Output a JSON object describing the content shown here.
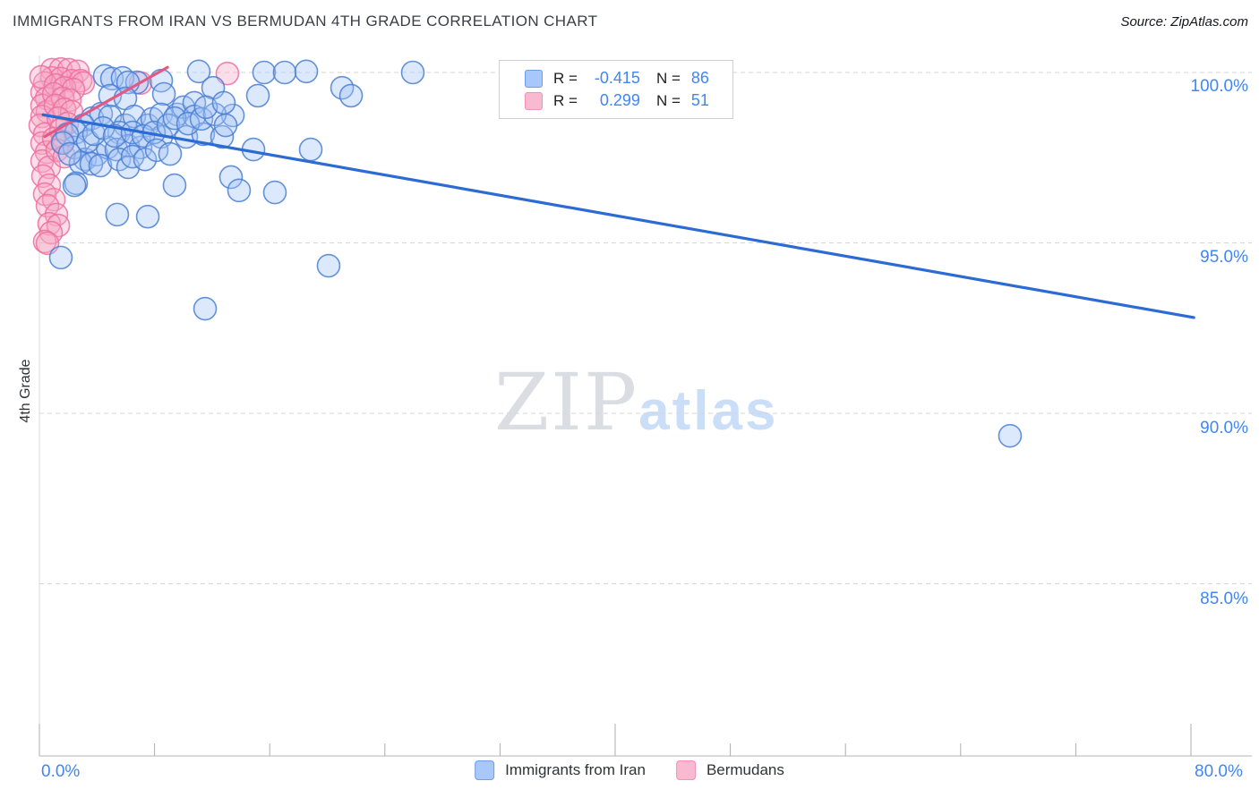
{
  "title": "IMMIGRANTS FROM IRAN VS BERMUDAN 4TH GRADE CORRELATION CHART",
  "source": "Source: ZipAtlas.com",
  "watermark": {
    "zip": "ZIP",
    "atlas": "atlas"
  },
  "y_axis_title": "4th Grade",
  "axes": {
    "x_min_label": "0.0%",
    "x_max_label": "80.0%",
    "y_tick_labels": [
      "100.0%",
      "95.0%",
      "90.0%",
      "85.0%"
    ]
  },
  "legend_box": {
    "rows": [
      {
        "r_label": "R =",
        "r_value": "-0.415",
        "n_label": "N =",
        "n_value": "86"
      },
      {
        "r_label": "R =",
        "r_value": "0.299",
        "n_label": "N =",
        "n_value": "51"
      }
    ]
  },
  "bottom_legend": [
    {
      "label": "Immigrants from Iran"
    },
    {
      "label": "Bermudans"
    }
  ],
  "colors": {
    "blue_fill": "#a4c2f4",
    "blue_stroke": "#4a7fd4",
    "blue_trend": "#2b6bd3",
    "pink_fill": "#f4a7c3",
    "pink_stroke": "#ee6fa0",
    "pink_trend": "#e25984",
    "grid": "#d6d6d6",
    "axis": "#b5b5b5",
    "tick_label": "#4285f4"
  },
  "chart_data": {
    "type": "scatter",
    "xlabel": "Immigrants from Iran (%)",
    "ylabel": "4th Grade",
    "xlim": [
      0,
      84.7
    ],
    "ylim": [
      79.9,
      100.5
    ],
    "y_gridlines": [
      100,
      95,
      90,
      85
    ],
    "x_minor_ticks": [
      8,
      16,
      24,
      32,
      48,
      56,
      64,
      72
    ],
    "x_major_ticks": [
      0,
      40,
      80
    ],
    "legend_position": "top-center",
    "series": [
      {
        "name": "Immigrants from Iran",
        "R": -0.415,
        "N": 86,
        "trend": {
          "x1": 0.25,
          "y1": 98.76,
          "x2": 80.2,
          "y2": 92.81
        },
        "points": [
          [
            4.54,
            99.9
          ],
          [
            5.04,
            99.82
          ],
          [
            5.78,
            99.84
          ],
          [
            6.78,
            99.71
          ],
          [
            6.16,
            99.71
          ],
          [
            8.46,
            99.76
          ],
          [
            4.91,
            99.32
          ],
          [
            5.97,
            99.24
          ],
          [
            8.65,
            99.37
          ],
          [
            11.07,
            100.03
          ],
          [
            15.61,
            100.0
          ],
          [
            17.04,
            100.0
          ],
          [
            18.54,
            100.03
          ],
          [
            25.94,
            100.0
          ],
          [
            12.07,
            99.55
          ],
          [
            15.18,
            99.32
          ],
          [
            21.03,
            99.55
          ],
          [
            21.65,
            99.32
          ],
          [
            13.44,
            98.74
          ],
          [
            3.67,
            98.66
          ],
          [
            4.29,
            98.79
          ],
          [
            4.91,
            98.71
          ],
          [
            3.05,
            98.45
          ],
          [
            5.97,
            98.45
          ],
          [
            6.59,
            98.71
          ],
          [
            7.53,
            98.45
          ],
          [
            7.84,
            98.64
          ],
          [
            8.46,
            98.77
          ],
          [
            2.55,
            98.24
          ],
          [
            5.54,
            98.24
          ],
          [
            2.43,
            97.8
          ],
          [
            3.17,
            97.45
          ],
          [
            3.98,
            97.59
          ],
          [
            4.73,
            97.8
          ],
          [
            5.35,
            97.74
          ],
          [
            6.16,
            97.85
          ],
          [
            7.03,
            97.8
          ],
          [
            2.86,
            97.35
          ],
          [
            3.61,
            97.32
          ],
          [
            4.23,
            97.27
          ],
          [
            5.54,
            97.45
          ],
          [
            6.16,
            97.22
          ],
          [
            2.55,
            96.75
          ],
          [
            2.43,
            96.69
          ],
          [
            8.46,
            98.11
          ],
          [
            9.58,
            98.77
          ],
          [
            10.01,
            98.98
          ],
          [
            10.76,
            99.11
          ],
          [
            10.76,
            98.71
          ],
          [
            10.2,
            98.11
          ],
          [
            11.38,
            98.19
          ],
          [
            12.69,
            98.11
          ],
          [
            14.87,
            97.74
          ],
          [
            18.85,
            97.74
          ],
          [
            9.39,
            96.69
          ],
          [
            13.31,
            96.93
          ],
          [
            13.87,
            96.54
          ],
          [
            16.36,
            96.48
          ],
          [
            7.53,
            95.77
          ],
          [
            5.41,
            95.83
          ],
          [
            1.49,
            94.57
          ],
          [
            11.51,
            93.07
          ],
          [
            20.09,
            94.33
          ],
          [
            67.43,
            89.34
          ],
          [
            1.93,
            98.19
          ],
          [
            1.62,
            97.93
          ],
          [
            2.11,
            97.61
          ],
          [
            3.36,
            97.98
          ],
          [
            3.79,
            98.19
          ],
          [
            4.42,
            98.37
          ],
          [
            5.23,
            98.14
          ],
          [
            6.47,
            98.24
          ],
          [
            7.22,
            98.14
          ],
          [
            7.96,
            98.24
          ],
          [
            8.96,
            98.45
          ],
          [
            9.39,
            98.66
          ],
          [
            10.33,
            98.5
          ],
          [
            11.26,
            98.64
          ],
          [
            12.19,
            98.77
          ],
          [
            12.94,
            98.45
          ],
          [
            6.47,
            97.53
          ],
          [
            7.34,
            97.45
          ],
          [
            8.15,
            97.72
          ],
          [
            9.08,
            97.61
          ],
          [
            11.57,
            98.98
          ],
          [
            12.81,
            99.11
          ]
        ]
      },
      {
        "name": "Bermudans",
        "R": 0.299,
        "N": 51,
        "trend": {
          "x1": 0.37,
          "y1": 98.12,
          "x2": 8.9,
          "y2": 100.15
        },
        "points": [
          [
            0.87,
            100.08
          ],
          [
            1.49,
            100.1
          ],
          [
            2.05,
            100.08
          ],
          [
            2.67,
            100.03
          ],
          [
            0.87,
            99.84
          ],
          [
            1.49,
            99.82
          ],
          [
            0.37,
            99.69
          ],
          [
            2.24,
            99.76
          ],
          [
            2.86,
            99.76
          ],
          [
            3.05,
            99.69
          ],
          [
            7.03,
            99.69
          ],
          [
            13.06,
            99.97
          ],
          [
            0.19,
            99.42
          ],
          [
            0.5,
            99.24
          ],
          [
            0.19,
            99.03
          ],
          [
            0.56,
            98.85
          ],
          [
            0.19,
            98.71
          ],
          [
            0.06,
            98.45
          ],
          [
            0.37,
            98.19
          ],
          [
            0.19,
            97.93
          ],
          [
            0.5,
            97.66
          ],
          [
            0.19,
            97.4
          ],
          [
            0.68,
            97.22
          ],
          [
            0.25,
            96.96
          ],
          [
            0.68,
            96.69
          ],
          [
            0.37,
            96.43
          ],
          [
            1.0,
            96.27
          ],
          [
            0.56,
            96.09
          ],
          [
            1.18,
            95.83
          ],
          [
            0.68,
            95.56
          ],
          [
            1.31,
            95.51
          ],
          [
            0.81,
            95.3
          ],
          [
            0.37,
            95.04
          ],
          [
            0.56,
            94.99
          ],
          [
            0.12,
            99.87
          ],
          [
            1.12,
            99.63
          ],
          [
            1.74,
            99.55
          ],
          [
            2.36,
            99.5
          ],
          [
            1.0,
            99.37
          ],
          [
            1.62,
            99.24
          ],
          [
            2.11,
            99.19
          ],
          [
            1.12,
            99.03
          ],
          [
            1.74,
            98.92
          ],
          [
            2.24,
            98.85
          ],
          [
            1.31,
            98.66
          ],
          [
            1.93,
            98.5
          ],
          [
            1.49,
            98.32
          ],
          [
            1.0,
            98.06
          ],
          [
            1.62,
            97.98
          ],
          [
            1.24,
            97.72
          ],
          [
            1.74,
            97.53
          ]
        ]
      }
    ]
  }
}
